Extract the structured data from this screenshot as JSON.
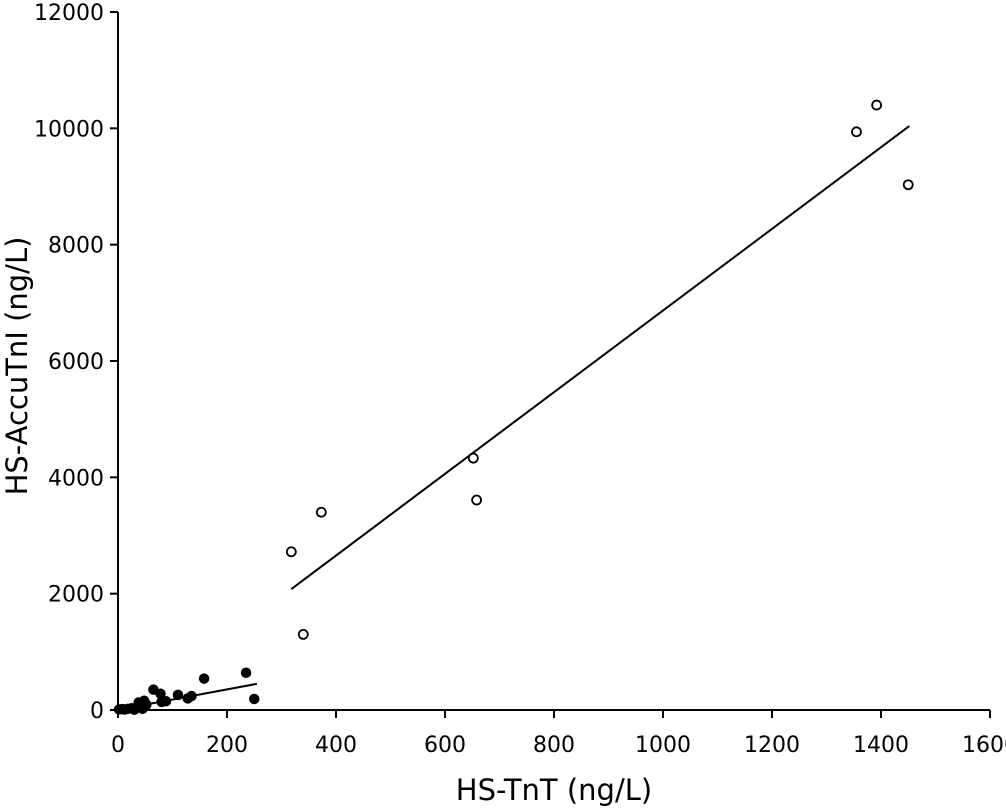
{
  "chart_data": {
    "type": "scatter",
    "title": "",
    "xlabel": "HS-TnT (ng/L)",
    "ylabel": "HS-AccuTnI (ng/L)",
    "xlim": [
      0,
      1600
    ],
    "ylim": [
      0,
      12000
    ],
    "x_ticks": [
      0,
      200,
      400,
      600,
      800,
      1000,
      1200,
      1400,
      1600
    ],
    "y_ticks": [
      0,
      2000,
      4000,
      6000,
      8000,
      10000,
      12000
    ],
    "grid": false,
    "legend": "none",
    "series": [
      {
        "marker": "filled-circle",
        "points": [
          [
            2,
            10
          ],
          [
            8,
            15
          ],
          [
            12,
            8
          ],
          [
            18,
            20
          ],
          [
            25,
            30
          ],
          [
            30,
            5
          ],
          [
            38,
            130
          ],
          [
            42,
            60
          ],
          [
            45,
            20
          ],
          [
            48,
            160
          ],
          [
            52,
            90
          ],
          [
            65,
            350
          ],
          [
            78,
            280
          ],
          [
            80,
            140
          ],
          [
            88,
            150
          ],
          [
            110,
            260
          ],
          [
            128,
            200
          ],
          [
            135,
            240
          ],
          [
            158,
            540
          ],
          [
            235,
            640
          ],
          [
            250,
            190
          ]
        ],
        "fit_line": [
          [
            20,
            40
          ],
          [
            255,
            450
          ]
        ]
      },
      {
        "marker": "open-circle",
        "points": [
          [
            318,
            2720
          ],
          [
            340,
            1300
          ],
          [
            373,
            3400
          ],
          [
            652,
            4330
          ],
          [
            658,
            3610
          ],
          [
            1355,
            9940
          ],
          [
            1392,
            10400
          ],
          [
            1450,
            9030
          ]
        ],
        "fit_line": [
          [
            318,
            2080
          ],
          [
            1452,
            10040
          ]
        ]
      }
    ]
  }
}
